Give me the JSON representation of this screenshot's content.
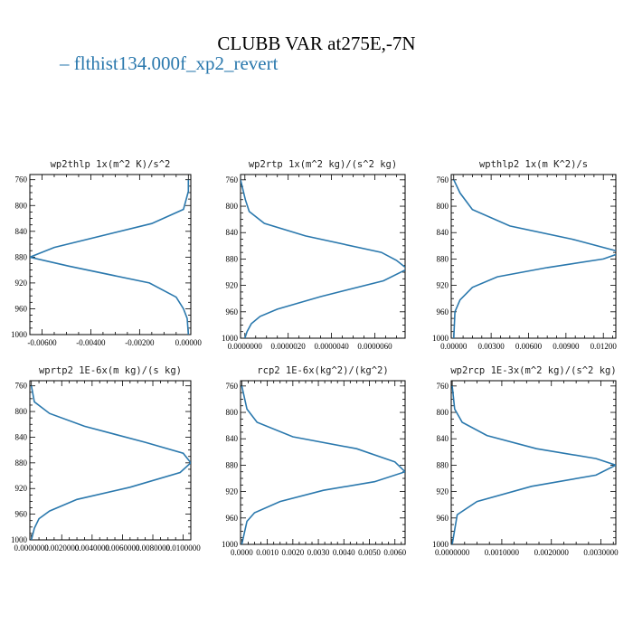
{
  "title": "CLUBB VAR at275E,-7N",
  "legend": {
    "label": "flthist134.000f_xp2_revert",
    "color": "#2a78ad"
  },
  "chart_data": [
    {
      "type": "line",
      "title": "wp2thlp  1x(m^2 K)/s^2",
      "xlim": [
        -0.0065,
        0.0001
      ],
      "ylim": [
        1000,
        752
      ],
      "xticks": [
        -0.006,
        -0.004,
        -0.002,
        0.0
      ],
      "xtick_labels": [
        "-0.00600",
        "-0.00400",
        "-0.00200",
        "0.00000"
      ],
      "yticks": [
        760,
        800,
        840,
        880,
        920,
        960,
        1000
      ],
      "ytick_labels": [
        "760",
        "800",
        "840",
        "880",
        "920",
        "960",
        "1000"
      ],
      "series": [
        {
          "x": [
            0.0,
            0.0,
            -0.0002,
            -0.0015,
            -0.0055,
            -0.0065,
            -0.0049,
            -0.0016,
            -0.0005,
            -0.0002,
            -5e-05,
            0.0
          ],
          "y": [
            760,
            778,
            806,
            828,
            865,
            880,
            894,
            920,
            942,
            960,
            975,
            1000
          ]
        }
      ]
    },
    {
      "type": "line",
      "title": "wp2rtp  1x(m^2 kg)/(s^2 kg)",
      "xlim": [
        -2e-07,
        7.4e-06
      ],
      "ylim": [
        1000,
        752
      ],
      "xticks": [
        0.0,
        2e-06,
        4e-06,
        6e-06
      ],
      "xtick_labels": [
        "0.0000000",
        "0.0000020",
        "0.0000040",
        "0.0000060"
      ],
      "series": [
        {
          "x": [
            -2e-07,
            2e-08,
            2e-07,
            9e-07,
            2.8e-06,
            6.3e-06,
            7e-06,
            7.5e-06,
            6.4e-06,
            3.5e-06,
            1.5e-06,
            7e-07,
            3e-07,
            1e-07,
            0.0
          ],
          "y": [
            760,
            790,
            808,
            826,
            845,
            870,
            882,
            895,
            913,
            937,
            956,
            967,
            978,
            990,
            1000
          ]
        }
      ],
      "yticks": [
        760,
        800,
        840,
        880,
        920,
        960,
        1000
      ],
      "ytick_labels": [
        "760",
        "800",
        "840",
        "880",
        "920",
        "960",
        "1000"
      ]
    },
    {
      "type": "line",
      "title": "wpthlp2  1x(m K^2)/s",
      "xlim": [
        -0.0002,
        0.013
      ],
      "ylim": [
        1000,
        752
      ],
      "xticks": [
        0.0,
        0.003,
        0.006,
        0.009,
        0.012
      ],
      "xtick_labels": [
        "0.00000",
        "0.00300",
        "0.00600",
        "0.00900",
        "0.01200"
      ],
      "yticks": [
        760,
        800,
        840,
        880,
        920,
        960,
        1000
      ],
      "ytick_labels": [
        "760",
        "800",
        "840",
        "880",
        "920",
        "960",
        "1000"
      ],
      "series": [
        {
          "x": [
            0.0,
            0.0005,
            0.0015,
            0.0045,
            0.0095,
            0.0135,
            0.012,
            0.0075,
            0.0035,
            0.0015,
            0.0005,
            0.0001,
            0.0
          ],
          "y": [
            760,
            780,
            805,
            830,
            850,
            870,
            880,
            893,
            907,
            923,
            942,
            960,
            1000
          ]
        }
      ]
    },
    {
      "type": "line",
      "title": "wprtp2  1E-6x(m kg)/(s kg)",
      "xlim": [
        -0.0001,
        0.0105
      ],
      "ylim": [
        1000,
        752
      ],
      "xticks": [
        0.0,
        0.002,
        0.004,
        0.006,
        0.008,
        0.01
      ],
      "xtick_labels": [
        "0.0000000",
        "0.0020000",
        "0.0040000",
        "0.0060000",
        "0.0080000",
        "0.0100000"
      ],
      "yticks": [
        760,
        800,
        840,
        880,
        920,
        960,
        1000
      ],
      "ytick_labels": [
        "760",
        "800",
        "840",
        "880",
        "920",
        "960",
        "1000"
      ],
      "series": [
        {
          "x": [
            0.0,
            0.0002,
            0.0012,
            0.0035,
            0.0075,
            0.01,
            0.0105,
            0.0098,
            0.0065,
            0.003,
            0.0012,
            0.0005,
            0.0002,
            0.0
          ],
          "y": [
            760,
            785,
            803,
            823,
            848,
            865,
            880,
            895,
            918,
            937,
            955,
            967,
            982,
            1000
          ]
        }
      ]
    },
    {
      "type": "line",
      "title": "rcp2  1E-6x(kg^2)/(kg^2)",
      "xlim": [
        -5e-05,
        0.0064
      ],
      "ylim": [
        1000,
        752
      ],
      "xticks": [
        0.0,
        0.001,
        0.002,
        0.003,
        0.004,
        0.005,
        0.006
      ],
      "xtick_labels": [
        "0.0000",
        "0.0010",
        "0.0020",
        "0.0030",
        "0.0040",
        "0.0050",
        "0.0060"
      ],
      "yticks": [
        760,
        800,
        840,
        880,
        920,
        960,
        1000
      ],
      "ytick_labels": [
        "760",
        "800",
        "840",
        "880",
        "920",
        "960",
        "1000"
      ],
      "series": [
        {
          "x": [
            0.0,
            0.0002,
            0.0006,
            0.002,
            0.0045,
            0.006,
            0.0064,
            0.0052,
            0.0032,
            0.0015,
            0.0005,
            0.0002,
            0.0
          ],
          "y": [
            760,
            795,
            815,
            837,
            855,
            875,
            890,
            905,
            918,
            935,
            952,
            965,
            1000
          ]
        }
      ]
    },
    {
      "type": "line",
      "title": "wp2rcp  1E-3x(m^2 kg)/(s^2 kg)",
      "xlim": [
        -2e-05,
        0.0033
      ],
      "ylim": [
        1000,
        752
      ],
      "xticks": [
        0.0,
        0.001,
        0.002,
        0.003
      ],
      "xtick_labels": [
        "0.0000000",
        "0.0010000",
        "0.0020000",
        "0.0030000"
      ],
      "yticks": [
        760,
        800,
        840,
        880,
        920,
        960,
        1000
      ],
      "ytick_labels": [
        "760",
        "800",
        "840",
        "880",
        "920",
        "960",
        "1000"
      ],
      "series": [
        {
          "x": [
            0.0,
            5e-05,
            0.0002,
            0.0007,
            0.0017,
            0.0029,
            0.0033,
            0.0029,
            0.0016,
            0.0005,
            0.0001,
            0.0
          ],
          "y": [
            760,
            795,
            815,
            835,
            855,
            870,
            880,
            895,
            912,
            935,
            955,
            1000
          ]
        }
      ]
    }
  ]
}
